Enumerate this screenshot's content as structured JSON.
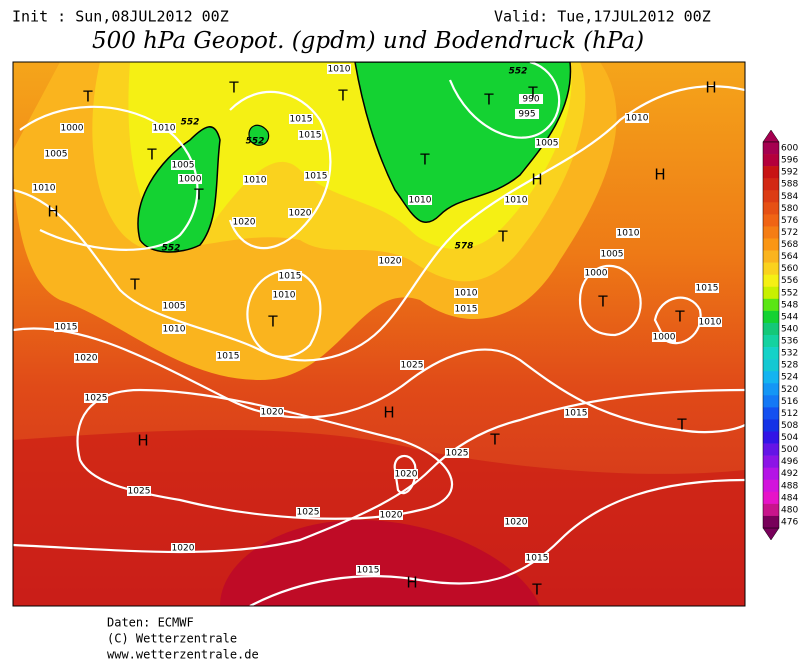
{
  "header": {
    "init": "Init : Sun,08JUL2012 00Z",
    "valid": "Valid: Tue,17JUL2012 00Z",
    "title": "500 hPa Geopot. (gpdm) und Bodendruck (hPa)"
  },
  "map": {
    "isobar_labels": [
      1010,
      1000,
      1010,
      1005,
      1010,
      1005,
      1000,
      1010,
      1015,
      1015,
      1015,
      1020,
      1020,
      1015,
      1010,
      1020,
      1005,
      1010,
      1015,
      1020,
      1015,
      1020,
      1025,
      1025,
      1025,
      1020,
      1025,
      1025,
      1020,
      1020,
      1015,
      1015,
      1020,
      1015,
      1015,
      1010,
      1010,
      1010,
      995,
      990,
      1005,
      1010,
      1010,
      1005,
      1000,
      1015,
      1010,
      1000
    ],
    "geopotential_labels": [
      552,
      552,
      552,
      552,
      578
    ],
    "centers": [
      "T",
      "T",
      "T",
      "H",
      "T",
      "T",
      "T",
      "T",
      "T",
      "T",
      "T",
      "H",
      "T",
      "H",
      "H",
      "T",
      "T",
      "H",
      "T",
      "T",
      "H",
      "H",
      "T"
    ]
  },
  "colorbar": {
    "values": [
      600,
      596,
      592,
      588,
      584,
      580,
      576,
      572,
      568,
      564,
      560,
      556,
      552,
      548,
      544,
      540,
      536,
      532,
      528,
      524,
      520,
      516,
      512,
      508,
      504,
      500,
      496,
      492,
      488,
      484,
      480,
      476
    ],
    "colors": [
      "#a50050",
      "#b4003c",
      "#c81414",
      "#d22814",
      "#dc3c14",
      "#e65014",
      "#f06414",
      "#f57d14",
      "#fa9614",
      "#fab41e",
      "#fad21e",
      "#f5f014",
      "#c8f000",
      "#5ae614",
      "#14d232",
      "#14c878",
      "#14d2a0",
      "#14d2c8",
      "#14c8d2",
      "#14b4f0",
      "#1496f5",
      "#1478f5",
      "#1450f0",
      "#1432e6",
      "#3214e6",
      "#6414e6",
      "#8c14e6",
      "#b414e6",
      "#d214dc",
      "#e614c8",
      "#c8148c",
      "#78005a"
    ]
  },
  "footer": [
    "Daten: ECMWF",
    "(C) Wetterzentrale",
    "www.wetterzentrale.de"
  ]
}
